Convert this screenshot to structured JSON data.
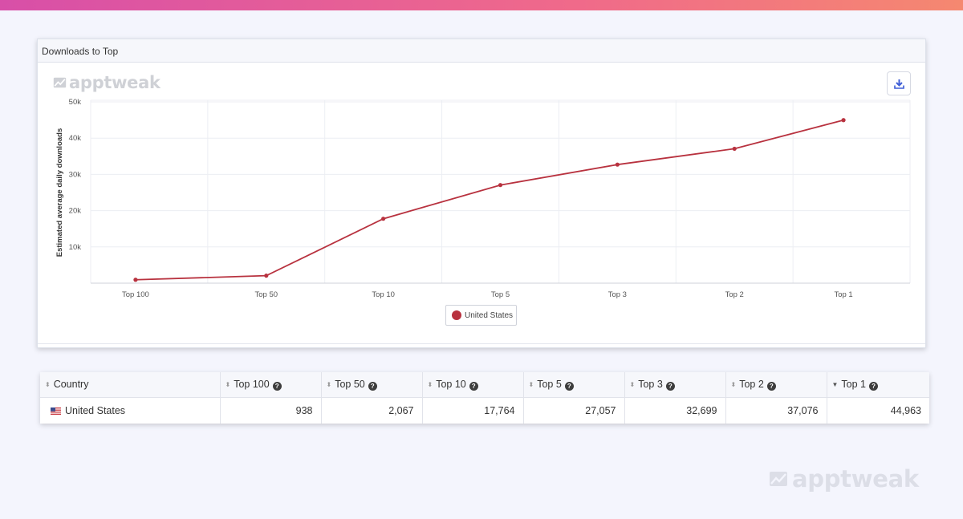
{
  "brand": {
    "name": "apptweak",
    "accent_gradient": [
      "#d84fa8",
      "#f06a8a",
      "#f58870"
    ],
    "series_color": "#b8323f"
  },
  "panel": {
    "title": "Downloads to Top",
    "download_icon": "download-icon"
  },
  "chart_data": {
    "type": "line",
    "ylabel": "Estimated average daily downloads",
    "xlabel": "",
    "categories": [
      "Top 100",
      "Top 50",
      "Top 10",
      "Top 5",
      "Top 3",
      "Top 2",
      "Top 1"
    ],
    "y_ticks": [
      "10k",
      "20k",
      "30k",
      "40k",
      "50k"
    ],
    "ylim": [
      0,
      50000
    ],
    "grid": true,
    "legend_position": "bottom-center",
    "series": [
      {
        "name": "United States",
        "values": [
          938,
          2067,
          17764,
          27057,
          32699,
          37076,
          44963
        ]
      }
    ]
  },
  "table": {
    "columns": [
      {
        "label": "Country",
        "help": false,
        "sorted": false
      },
      {
        "label": "Top 100",
        "help": true,
        "sorted": false
      },
      {
        "label": "Top 50",
        "help": true,
        "sorted": false
      },
      {
        "label": "Top 10",
        "help": true,
        "sorted": false
      },
      {
        "label": "Top 5",
        "help": true,
        "sorted": false
      },
      {
        "label": "Top 3",
        "help": true,
        "sorted": false
      },
      {
        "label": "Top 2",
        "help": true,
        "sorted": false
      },
      {
        "label": "Top 1",
        "help": true,
        "sorted": true
      }
    ],
    "rows": [
      {
        "country": "United States",
        "flag": "us-flag-icon",
        "values": [
          "938",
          "2,067",
          "17,764",
          "27,057",
          "32,699",
          "37,076",
          "44,963"
        ]
      }
    ]
  }
}
